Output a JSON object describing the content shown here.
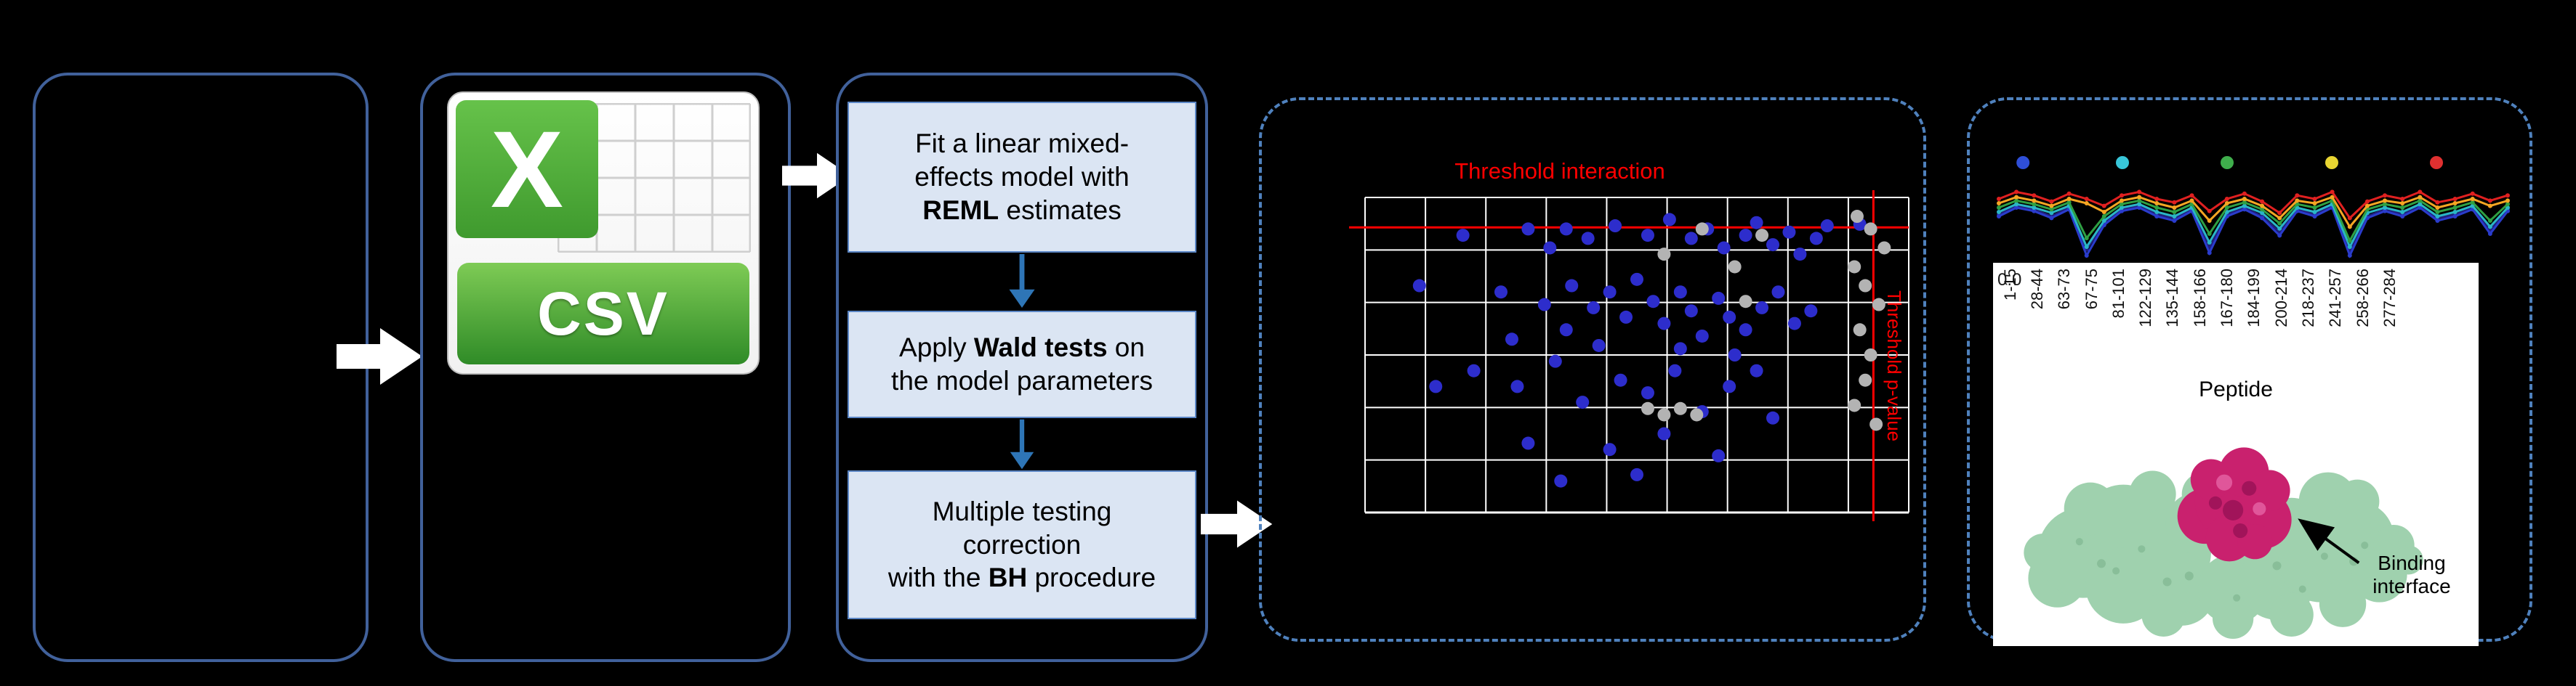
{
  "colors": {
    "panel_border": "#41619b",
    "dashed_border": "#4f81bd",
    "step_fill": "#dbe5f3",
    "threshold_red": "#ff0000",
    "significant_blue": "#2d2dcc",
    "nonsignificant_gray": "#b3b3b3",
    "protein_green": "#9fd1ae",
    "binding_magenta": "#c9216e"
  },
  "csv": {
    "label": "CSV",
    "logo_letter": "X"
  },
  "workflow": {
    "steps": [
      {
        "pre": "Fit a linear mixed-\neffects model with\n",
        "bold": "REML",
        "post": " estimates"
      },
      {
        "pre": "Apply ",
        "bold": "Wald tests",
        "post": " on\nthe model parameters"
      },
      {
        "pre": "Multiple testing\ncorrection\nwith the ",
        "bold": "BH",
        "post": " procedure"
      }
    ]
  },
  "volcano": {
    "title": "Threshold interaction",
    "side_label": "Threshold p-value"
  },
  "peptide_panel": {
    "y_tick": "0.0",
    "x_label": "Peptide",
    "tick_labels": [
      "1-15",
      "28-44",
      "63-73",
      "67-75",
      "81-101",
      "122-129",
      "135-144",
      "158-166",
      "167-180",
      "184-199",
      "200-214",
      "218-237",
      "241-257",
      "258-266",
      "277-284"
    ],
    "annotation": "Binding interface"
  },
  "chart_data": [
    {
      "type": "scatter",
      "title": "Threshold interaction",
      "right_label": "Threshold p-value",
      "grid": {
        "cols": 9,
        "rows": 6,
        "color": "#ffffff"
      },
      "thresholds": {
        "h_y": 0.095,
        "v_x": 0.935,
        "color": "#ff0000"
      },
      "series": [
        {
          "name": "significant-peptides",
          "color": "#2d2dcc",
          "points": [
            [
              0.18,
              0.12
            ],
            [
              0.3,
              0.1
            ],
            [
              0.34,
              0.16
            ],
            [
              0.37,
              0.1
            ],
            [
              0.41,
              0.13
            ],
            [
              0.46,
              0.09
            ],
            [
              0.52,
              0.12
            ],
            [
              0.56,
              0.07
            ],
            [
              0.6,
              0.13
            ],
            [
              0.63,
              0.1
            ],
            [
              0.66,
              0.16
            ],
            [
              0.7,
              0.12
            ],
            [
              0.72,
              0.08
            ],
            [
              0.75,
              0.15
            ],
            [
              0.78,
              0.11
            ],
            [
              0.8,
              0.18
            ],
            [
              0.83,
              0.13
            ],
            [
              0.85,
              0.09
            ],
            [
              0.91,
              0.085
            ],
            [
              0.1,
              0.28
            ],
            [
              0.25,
              0.3
            ],
            [
              0.33,
              0.34
            ],
            [
              0.38,
              0.28
            ],
            [
              0.42,
              0.35
            ],
            [
              0.45,
              0.3
            ],
            [
              0.48,
              0.38
            ],
            [
              0.5,
              0.26
            ],
            [
              0.53,
              0.33
            ],
            [
              0.55,
              0.4
            ],
            [
              0.58,
              0.3
            ],
            [
              0.6,
              0.36
            ],
            [
              0.62,
              0.44
            ],
            [
              0.65,
              0.32
            ],
            [
              0.67,
              0.38
            ],
            [
              0.7,
              0.42
            ],
            [
              0.73,
              0.35
            ],
            [
              0.76,
              0.3
            ],
            [
              0.79,
              0.4
            ],
            [
              0.82,
              0.36
            ],
            [
              0.13,
              0.6
            ],
            [
              0.2,
              0.55
            ],
            [
              0.27,
              0.45
            ],
            [
              0.28,
              0.6
            ],
            [
              0.35,
              0.52
            ],
            [
              0.37,
              0.42
            ],
            [
              0.4,
              0.65
            ],
            [
              0.43,
              0.47
            ],
            [
              0.47,
              0.58
            ],
            [
              0.52,
              0.62
            ],
            [
              0.57,
              0.55
            ],
            [
              0.58,
              0.48
            ],
            [
              0.62,
              0.68
            ],
            [
              0.67,
              0.6
            ],
            [
              0.68,
              0.5
            ],
            [
              0.72,
              0.55
            ],
            [
              0.3,
              0.78
            ],
            [
              0.36,
              0.9
            ],
            [
              0.45,
              0.8
            ],
            [
              0.5,
              0.88
            ],
            [
              0.55,
              0.75
            ],
            [
              0.65,
              0.82
            ],
            [
              0.75,
              0.7
            ]
          ]
        },
        {
          "name": "non-significant-peptides",
          "color": "#b3b3b3",
          "points": [
            [
              0.905,
              0.06
            ],
            [
              0.93,
              0.1
            ],
            [
              0.955,
              0.16
            ],
            [
              0.9,
              0.22
            ],
            [
              0.92,
              0.28
            ],
            [
              0.945,
              0.34
            ],
            [
              0.91,
              0.42
            ],
            [
              0.93,
              0.5
            ],
            [
              0.92,
              0.58
            ],
            [
              0.9,
              0.66
            ],
            [
              0.94,
              0.72
            ],
            [
              0.62,
              0.1
            ],
            [
              0.68,
              0.22
            ],
            [
              0.55,
              0.18
            ],
            [
              0.7,
              0.33
            ],
            [
              0.73,
              0.12
            ],
            [
              0.52,
              0.67
            ],
            [
              0.55,
              0.69
            ],
            [
              0.58,
              0.67
            ],
            [
              0.61,
              0.69
            ]
          ]
        }
      ]
    },
    {
      "type": "line",
      "legend_dots": [
        {
          "color": "#2f4fd8",
          "x": 0.06
        },
        {
          "color": "#38c6d8",
          "x": 0.25
        },
        {
          "color": "#3fae4c",
          "x": 0.45
        },
        {
          "color": "#e8d532",
          "x": 0.65
        },
        {
          "color": "#e03030",
          "x": 0.85
        }
      ],
      "series": [
        {
          "name": "navy",
          "color": "#20207f",
          "values": [
            0.48,
            0.38,
            0.42,
            0.5,
            0.4,
            0.88,
            0.58,
            0.42,
            0.38,
            0.48,
            0.52,
            0.42,
            0.86,
            0.48,
            0.4,
            0.5,
            0.68,
            0.42,
            0.48,
            0.38,
            0.9,
            0.5,
            0.42,
            0.48,
            0.38,
            0.52,
            0.48,
            0.4,
            0.66,
            0.42
          ]
        },
        {
          "name": "blue",
          "color": "#2a3ccc",
          "values": [
            0.5,
            0.4,
            0.44,
            0.52,
            0.42,
            0.95,
            0.6,
            0.44,
            0.4,
            0.5,
            0.55,
            0.44,
            0.92,
            0.5,
            0.42,
            0.52,
            0.72,
            0.44,
            0.5,
            0.4,
            0.95,
            0.52,
            0.44,
            0.5,
            0.4,
            0.55,
            0.5,
            0.42,
            0.7,
            0.44
          ]
        },
        {
          "name": "teal",
          "color": "#2ab6c6",
          "values": [
            0.45,
            0.36,
            0.4,
            0.46,
            0.38,
            0.85,
            0.55,
            0.4,
            0.36,
            0.45,
            0.5,
            0.4,
            0.8,
            0.45,
            0.38,
            0.46,
            0.64,
            0.4,
            0.45,
            0.36,
            0.85,
            0.46,
            0.4,
            0.45,
            0.36,
            0.5,
            0.45,
            0.38,
            0.62,
            0.4
          ]
        },
        {
          "name": "green",
          "color": "#2fa043",
          "values": [
            0.4,
            0.32,
            0.36,
            0.42,
            0.34,
            0.75,
            0.5,
            0.36,
            0.32,
            0.4,
            0.45,
            0.36,
            0.7,
            0.4,
            0.34,
            0.42,
            0.58,
            0.36,
            0.4,
            0.32,
            0.78,
            0.42,
            0.36,
            0.4,
            0.32,
            0.45,
            0.4,
            0.34,
            0.55,
            0.36
          ]
        },
        {
          "name": "orange",
          "color": "#f5a623",
          "values": [
            0.35,
            0.28,
            0.32,
            0.38,
            0.3,
            0.35,
            0.45,
            0.32,
            0.28,
            0.35,
            0.4,
            0.32,
            0.55,
            0.35,
            0.3,
            0.38,
            0.52,
            0.32,
            0.35,
            0.28,
            0.62,
            0.38,
            0.32,
            0.35,
            0.28,
            0.4,
            0.35,
            0.3,
            0.38,
            0.32
          ]
        },
        {
          "name": "red",
          "color": "#e02020",
          "values": [
            0.3,
            0.22,
            0.26,
            0.33,
            0.24,
            0.3,
            0.38,
            0.26,
            0.22,
            0.3,
            0.34,
            0.26,
            0.44,
            0.3,
            0.24,
            0.33,
            0.46,
            0.26,
            0.3,
            0.22,
            0.52,
            0.33,
            0.26,
            0.3,
            0.22,
            0.34,
            0.3,
            0.24,
            0.32,
            0.26
          ]
        }
      ]
    }
  ]
}
